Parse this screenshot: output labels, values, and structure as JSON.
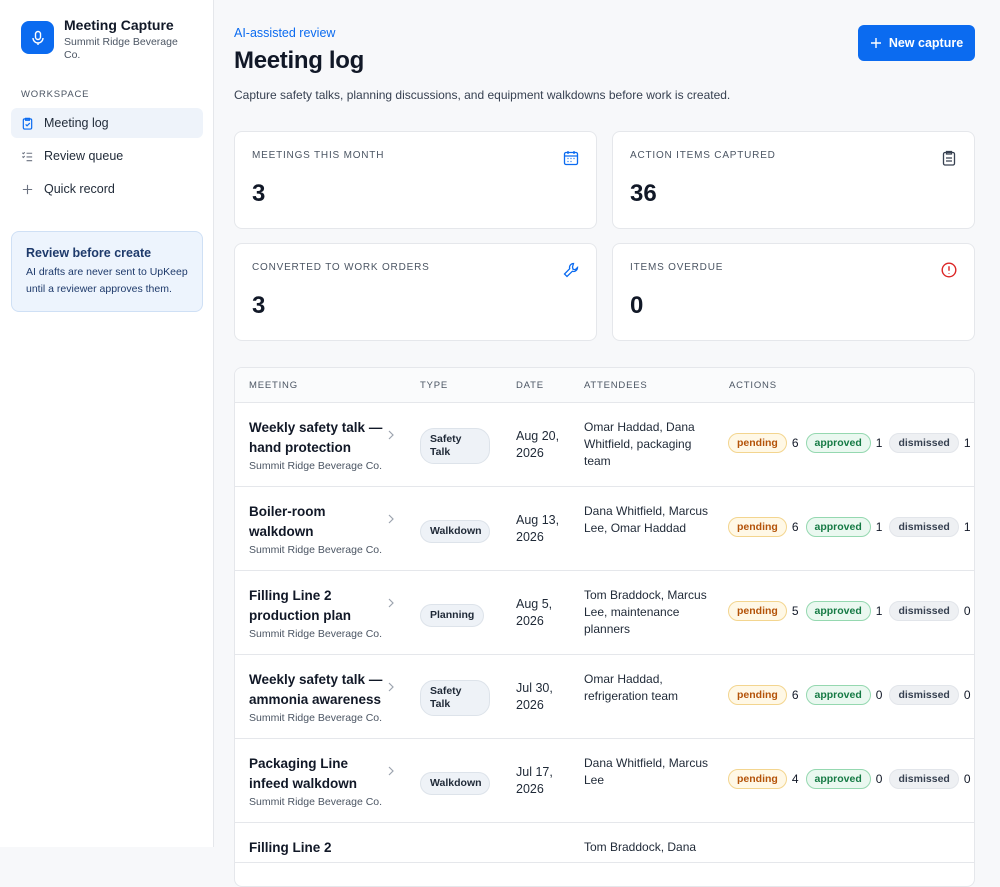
{
  "sidebar": {
    "app_name": "Meeting Capture",
    "org": "Summit Ridge Beverage Co.",
    "section": "WORKSPACE",
    "nav": [
      "Meeting log",
      "Review queue",
      "Quick record"
    ],
    "notice": {
      "title": "Review before create",
      "body": "AI drafts are never sent to UpKeep until a reviewer approves them."
    }
  },
  "header": {
    "eyebrow": "AI-assisted review",
    "title": "Meeting log",
    "subtitle": "Capture safety talks, planning discussions, and equipment walkdowns before work is created.",
    "button": "New capture"
  },
  "stats": [
    {
      "label": "MEETINGS THIS MONTH",
      "value": 3
    },
    {
      "label": "ACTION ITEMS CAPTURED",
      "value": 36
    },
    {
      "label": "CONVERTED TO WORK ORDERS",
      "value": 3
    },
    {
      "label": "ITEMS OVERDUE",
      "value": 0
    }
  ],
  "status_labels": {
    "pending": "pending",
    "approved": "approved",
    "dismissed": "dismissed"
  },
  "table": {
    "columns": [
      "MEETING",
      "TYPE",
      "DATE",
      "ATTENDEES",
      "ACTIONS"
    ],
    "rows": [
      {
        "meeting": "Weekly safety talk — hand protection",
        "org": "Summit Ridge Beverage Co.",
        "type": "Safety Talk",
        "date": "Aug 20, 2026",
        "attendees": "Omar Haddad, Dana Whitfield, packaging team",
        "pending": 6,
        "approved": 1,
        "dismissed": 1
      },
      {
        "meeting": "Boiler-room walkdown",
        "org": "Summit Ridge Beverage Co.",
        "type": "Walkdown",
        "date": "Aug 13, 2026",
        "attendees": "Dana Whitfield, Marcus Lee, Omar Haddad",
        "pending": 6,
        "approved": 1,
        "dismissed": 1
      },
      {
        "meeting": "Filling Line 2 production plan",
        "org": "Summit Ridge Beverage Co.",
        "type": "Planning",
        "date": "Aug 5, 2026",
        "attendees": "Tom Braddock, Marcus Lee, maintenance planners",
        "pending": 5,
        "approved": 1,
        "dismissed": 0
      },
      {
        "meeting": "Weekly safety talk — ammonia awareness",
        "org": "Summit Ridge Beverage Co.",
        "type": "Safety Talk",
        "date": "Jul 30, 2026",
        "attendees": "Omar Haddad, refrigeration team",
        "pending": 6,
        "approved": 0,
        "dismissed": 0
      },
      {
        "meeting": "Packaging Line infeed walkdown",
        "org": "Summit Ridge Beverage Co.",
        "type": "Walkdown",
        "date": "Jul 17, 2026",
        "attendees": "Dana Whitfield, Marcus Lee",
        "pending": 4,
        "approved": 0,
        "dismissed": 0
      },
      {
        "meeting": "Filling Line 2",
        "attendees": "Tom Braddock, Dana"
      }
    ]
  }
}
